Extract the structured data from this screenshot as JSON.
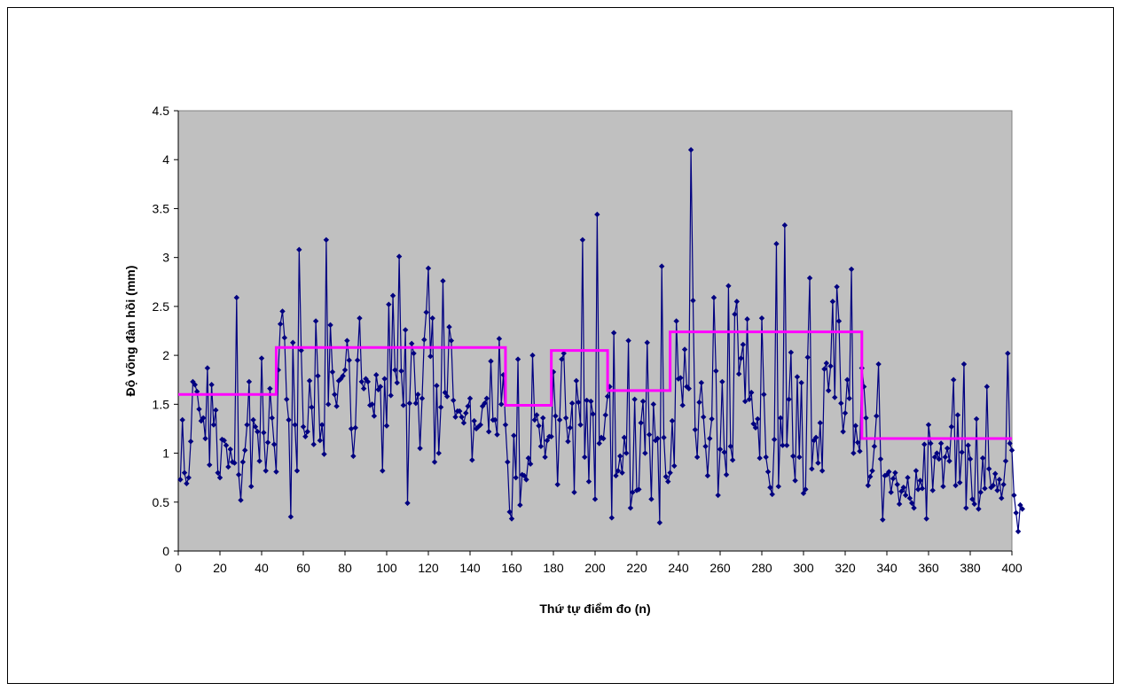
{
  "chart_data": {
    "type": "scatter",
    "title": "",
    "xlabel": "Thứ tự điểm đo  (n)",
    "ylabel": "Độ võng đàn hồi (mm)",
    "xlim": [
      0,
      400
    ],
    "ylim": [
      0,
      4.5
    ],
    "x_ticks": [
      0,
      20,
      40,
      60,
      80,
      100,
      120,
      140,
      160,
      180,
      200,
      220,
      240,
      260,
      280,
      300,
      320,
      340,
      360,
      380,
      400
    ],
    "y_ticks": [
      0,
      0.5,
      1,
      1.5,
      2,
      2.5,
      3,
      3.5,
      4,
      4.5
    ],
    "y_tick_labels": [
      "0",
      "0.5",
      "1",
      "1.5",
      "2",
      "2.5",
      "3",
      "3.5",
      "4",
      "4.5"
    ],
    "grid": false,
    "legend": "none",
    "plot_background": "#c0c0c0",
    "series": [
      {
        "kind": "line-with-markers",
        "color": "#000080",
        "marker": "diamond",
        "x_start": 1,
        "x_step": 1,
        "values": [
          0.73,
          1.34,
          0.8,
          0.69,
          0.75,
          1.12,
          1.73,
          1.7,
          1.63,
          1.45,
          1.33,
          1.36,
          1.15,
          1.87,
          0.88,
          1.7,
          1.29,
          1.44,
          0.8,
          0.75,
          1.14,
          1.13,
          1.08,
          0.86,
          1.04,
          0.91,
          0.9,
          2.59,
          0.78,
          0.52,
          0.91,
          1.03,
          1.29,
          1.73,
          0.66,
          1.34,
          1.27,
          1.22,
          0.92,
          1.97,
          1.21,
          0.82,
          1.11,
          1.66,
          1.36,
          1.09,
          0.81,
          1.85,
          2.32,
          2.45,
          2.18,
          1.55,
          1.34,
          0.35,
          2.13,
          1.29,
          0.82,
          3.08,
          2.05,
          1.27,
          1.17,
          1.22,
          1.74,
          1.47,
          1.09,
          2.35,
          1.79,
          1.13,
          1.29,
          0.99,
          3.18,
          1.5,
          2.31,
          1.83,
          1.6,
          1.48,
          1.74,
          1.76,
          1.79,
          1.85,
          2.15,
          1.95,
          1.25,
          0.97,
          1.26,
          1.95,
          2.38,
          1.73,
          1.66,
          1.76,
          1.73,
          1.49,
          1.5,
          1.38,
          1.8,
          1.65,
          1.68,
          0.82,
          1.76,
          1.28,
          2.52,
          1.59,
          2.61,
          1.85,
          1.72,
          3.01,
          1.84,
          1.49,
          2.26,
          0.49,
          1.51,
          2.12,
          2.02,
          1.51,
          1.6,
          1.05,
          1.56,
          2.16,
          2.44,
          2.89,
          1.99,
          2.38,
          0.91,
          1.69,
          1.0,
          1.47,
          2.76,
          1.62,
          1.58,
          2.29,
          2.15,
          1.54,
          1.37,
          1.43,
          1.43,
          1.37,
          1.31,
          1.41,
          1.48,
          1.56,
          0.93,
          1.33,
          1.25,
          1.27,
          1.29,
          1.48,
          1.51,
          1.56,
          1.22,
          1.94,
          1.34,
          1.34,
          1.19,
          2.17,
          1.5,
          1.8,
          1.29,
          0.91,
          0.4,
          0.33,
          1.18,
          0.75,
          1.96,
          0.47,
          0.78,
          0.77,
          0.73,
          0.95,
          0.89,
          2.0,
          1.34,
          1.39,
          1.28,
          1.07,
          1.36,
          0.96,
          1.13,
          1.17,
          1.17,
          1.83,
          1.38,
          0.68,
          1.34,
          1.96,
          2.02,
          1.36,
          1.12,
          1.26,
          1.51,
          0.6,
          1.74,
          1.52,
          1.29,
          3.18,
          0.96,
          1.54,
          0.71,
          1.53,
          1.4,
          0.53,
          3.44,
          1.1,
          1.16,
          1.15,
          1.39,
          1.58,
          1.68,
          0.34,
          2.23,
          0.77,
          0.82,
          0.97,
          0.8,
          1.16,
          1.0,
          2.15,
          0.44,
          0.6,
          1.55,
          0.62,
          0.63,
          1.31,
          1.53,
          1.0,
          2.13,
          1.19,
          0.53,
          1.5,
          1.13,
          1.15,
          0.29,
          2.91,
          1.16,
          0.76,
          0.71,
          0.8,
          1.33,
          0.87,
          2.35,
          1.76,
          1.77,
          1.49,
          2.06,
          1.68,
          1.66,
          4.1,
          2.56,
          1.24,
          0.96,
          1.52,
          1.72,
          1.37,
          1.07,
          0.77,
          1.15,
          1.35,
          2.59,
          1.84,
          0.57,
          1.04,
          1.73,
          1.01,
          0.78,
          2.71,
          1.07,
          0.93,
          2.42,
          2.55,
          1.81,
          1.97,
          2.11,
          1.53,
          2.37,
          1.55,
          1.62,
          1.3,
          1.26,
          1.35,
          0.95,
          2.38,
          1.6,
          0.96,
          0.81,
          0.65,
          0.58,
          1.14,
          3.14,
          0.66,
          1.36,
          1.08,
          3.33,
          1.08,
          1.55,
          2.03,
          0.97,
          0.72,
          1.78,
          0.96,
          1.72,
          0.59,
          0.63,
          1.98,
          2.79,
          0.84,
          1.13,
          1.16,
          0.9,
          1.31,
          0.82,
          1.86,
          1.92,
          1.64,
          1.89,
          2.55,
          1.57,
          2.7,
          2.35,
          1.51,
          1.22,
          1.41,
          1.75,
          1.56,
          2.88,
          1.0,
          1.28,
          1.11,
          1.02,
          1.87,
          1.68,
          1.36,
          0.67,
          0.76,
          0.82,
          1.07,
          1.38,
          1.91,
          0.94,
          0.32,
          0.77,
          0.78,
          0.81,
          0.6,
          0.74,
          0.8,
          0.68,
          0.48,
          0.61,
          0.65,
          0.57,
          0.75,
          0.54,
          0.49,
          0.44,
          0.82,
          0.63,
          0.72,
          0.64,
          1.09,
          0.33,
          1.29,
          1.1,
          0.62,
          0.96,
          1.0,
          0.94,
          1.1,
          0.66,
          0.96,
          1.05,
          0.92,
          1.27,
          1.75,
          0.67,
          1.39,
          0.7,
          1.01,
          1.91,
          0.44,
          1.08,
          0.94,
          0.53,
          0.48,
          1.35,
          0.43,
          0.6,
          0.95,
          0.64,
          1.68,
          0.84,
          0.65,
          0.67,
          0.79,
          0.62,
          0.73,
          0.54,
          0.68,
          0.92,
          2.02,
          1.1,
          1.03,
          0.57,
          0.39,
          0.2,
          0.47,
          0.43
        ]
      },
      {
        "kind": "step-line",
        "color": "#ff00ff",
        "segments": [
          {
            "x0": 0,
            "x1": 47,
            "y": 1.6
          },
          {
            "x0": 47,
            "x1": 157,
            "y": 2.08
          },
          {
            "x0": 157,
            "x1": 179,
            "y": 1.49
          },
          {
            "x0": 179,
            "x1": 206,
            "y": 2.05
          },
          {
            "x0": 206,
            "x1": 236,
            "y": 1.64
          },
          {
            "x0": 236,
            "x1": 328,
            "y": 2.24
          },
          {
            "x0": 328,
            "x1": 400,
            "y": 1.15
          }
        ]
      }
    ]
  }
}
